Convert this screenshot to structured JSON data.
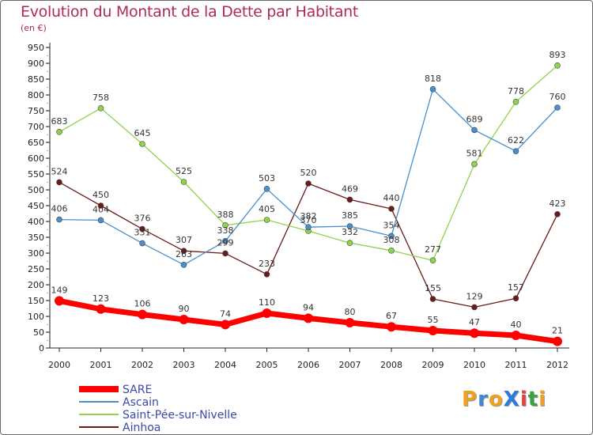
{
  "chart_data": {
    "type": "line",
    "title": "Evolution du Montant de la Dette par Habitant",
    "ylabel": "(en €)",
    "xlabel": "",
    "categories": [
      "2000",
      "2001",
      "2002",
      "2003",
      "2004",
      "2005",
      "2006",
      "2007",
      "2008",
      "2009",
      "2010",
      "2011",
      "2012"
    ],
    "ylim": [
      0,
      950
    ],
    "yticks": [
      0,
      50,
      100,
      150,
      200,
      250,
      300,
      350,
      400,
      450,
      500,
      550,
      600,
      650,
      700,
      750,
      800,
      850,
      900,
      950
    ],
    "grid": false,
    "legend_position": "bottom-left",
    "series": [
      {
        "name": "SARE",
        "color": "#ff0000",
        "values": [
          149,
          123,
          106,
          90,
          74,
          110,
          94,
          80,
          67,
          55,
          47,
          40,
          21
        ]
      },
      {
        "name": "Ascain",
        "color": "#4a8fc9",
        "values": [
          406,
          404,
          331,
          263,
          338,
          503,
          382,
          385,
          354,
          818,
          689,
          622,
          760
        ]
      },
      {
        "name": "Saint-Pée-sur-Nivelle",
        "color": "#8ed44a",
        "values": [
          683,
          758,
          645,
          525,
          388,
          405,
          370,
          332,
          308,
          277,
          581,
          778,
          893
        ]
      },
      {
        "name": "Ainhoa",
        "color": "#6b1a1a",
        "values": [
          524,
          450,
          376,
          307,
          299,
          233,
          520,
          469,
          440,
          155,
          129,
          157,
          423
        ]
      }
    ]
  },
  "logo": {
    "text": "ProXiti",
    "letters": [
      "P",
      "r",
      "o",
      "X",
      "i",
      "t",
      "i"
    ],
    "colors": [
      "#f0a020",
      "#3a8ad8",
      "#f0a020",
      "#2a7ae0",
      "#e84040",
      "#3aa040",
      "#f0a020"
    ]
  }
}
